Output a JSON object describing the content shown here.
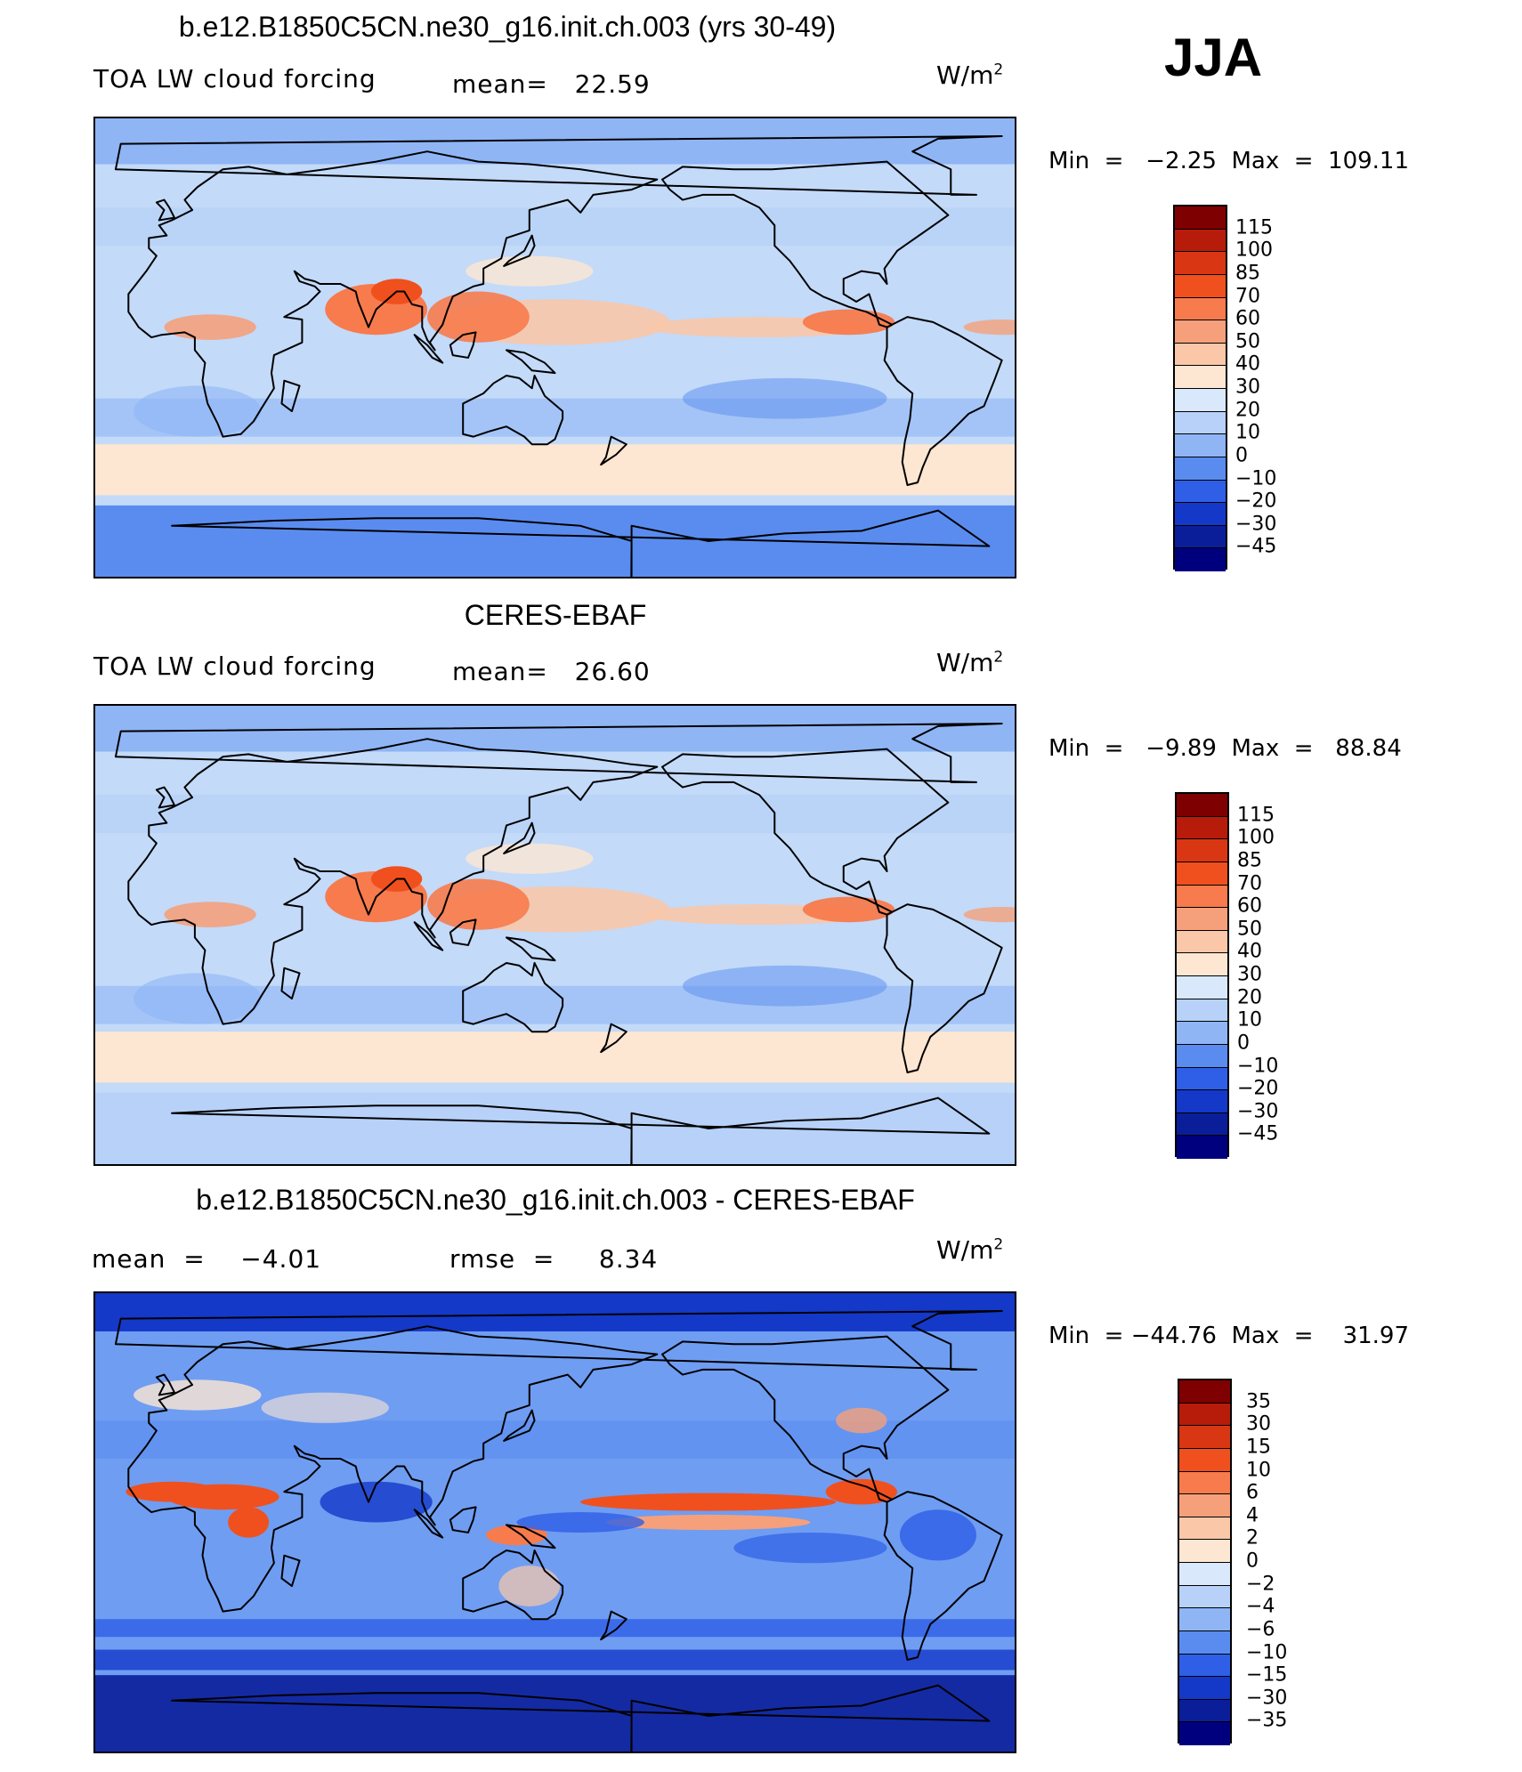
{
  "season": "JJA",
  "units_base": "W/m",
  "units_exp": "2",
  "panels": [
    {
      "title": "b.e12.B1850C5CN.ne30_g16.init.ch.003 (yrs 30-49)",
      "left_label": "TOA LW cloud forcing",
      "mid_label": "mean=   22.59",
      "minmax": "Min  =   −2.25  Max  =  109.11",
      "colorbar": {
        "labels": [
          "115",
          "100",
          "85",
          "70",
          "60",
          "50",
          "40",
          "30",
          "20",
          "10",
          "0",
          "−10",
          "−20",
          "−30",
          "−45"
        ],
        "colors": [
          "#7f0000",
          "#b71c0a",
          "#d93614",
          "#f0501e",
          "#f77b4d",
          "#f5a07b",
          "#fac7a9",
          "#fde6d2",
          "#d9e8fb",
          "#b7d1f8",
          "#8fb5f5",
          "#5a8cf0",
          "#2e5fe6",
          "#1438c8",
          "#0a1e9a",
          "#00007f"
        ]
      },
      "map": {
        "land_tone": "#a9c7f7",
        "ocean_tone": "#c3daf9"
      }
    },
    {
      "title": "CERES-EBAF",
      "left_label": "TOA LW cloud forcing",
      "mid_label": "mean=   26.60",
      "minmax": "Min  =   −9.89  Max  =   88.84",
      "colorbar": {
        "labels": [
          "115",
          "100",
          "85",
          "70",
          "60",
          "50",
          "40",
          "30",
          "20",
          "10",
          "0",
          "−10",
          "−20",
          "−30",
          "−45"
        ],
        "colors": [
          "#7f0000",
          "#b71c0a",
          "#d93614",
          "#f0501e",
          "#f77b4d",
          "#f5a07b",
          "#fac7a9",
          "#fde6d2",
          "#d9e8fb",
          "#b7d1f8",
          "#8fb5f5",
          "#5a8cf0",
          "#2e5fe6",
          "#1438c8",
          "#0a1e9a",
          "#00007f"
        ]
      },
      "map": {
        "land_tone": "#a9c7f7",
        "ocean_tone": "#c3daf9"
      }
    },
    {
      "title": "b.e12.B1850C5CN.ne30_g16.init.ch.003 - CERES-EBAF",
      "left_label": "mean  =    −4.01",
      "mid_label": "rmse  =     8.34",
      "minmax": "Min  = −44.76  Max  =    31.97",
      "colorbar": {
        "labels": [
          "35",
          "30",
          "15",
          "10",
          "6",
          "4",
          "2",
          "0",
          "−2",
          "−4",
          "−6",
          "−10",
          "−15",
          "−30",
          "−35"
        ],
        "colors": [
          "#7f0000",
          "#b71c0a",
          "#d93614",
          "#f0501e",
          "#f77b4d",
          "#f5a07b",
          "#fac7a9",
          "#fde6d2",
          "#d9e8fb",
          "#b7d1f8",
          "#8fb5f5",
          "#5a8cf0",
          "#2e5fe6",
          "#1438c8",
          "#0a1e9a",
          "#00007f"
        ]
      },
      "map": {
        "land_tone": "#8fb5f5",
        "ocean_tone": "#6f9df2"
      }
    }
  ]
}
